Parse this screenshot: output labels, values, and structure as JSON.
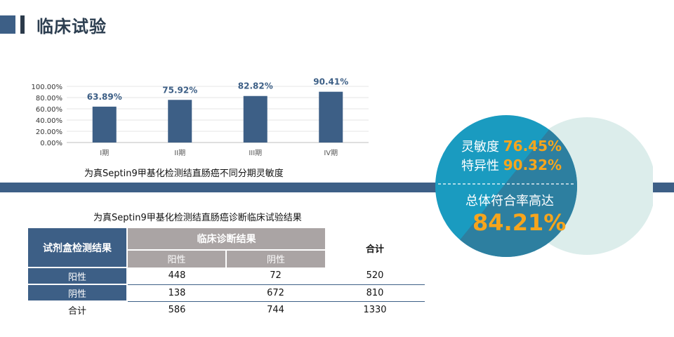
{
  "header": {
    "title": "临床试验"
  },
  "chart_data": {
    "type": "bar",
    "categories": [
      "I期",
      "II期",
      "III期",
      "IV期"
    ],
    "values": [
      63.89,
      75.92,
      82.82,
      90.41
    ],
    "data_labels": [
      "63.89%",
      "75.92%",
      "82.82%",
      "90.41%"
    ],
    "yticks": [
      "0.00%",
      "20.00%",
      "40.00%",
      "60.00%",
      "80.00%",
      "100.00%"
    ],
    "ylim": [
      0,
      100
    ],
    "grid": true,
    "title": "为真Septin9甲基化检测结直肠癌不同分期灵敏度",
    "colors": {
      "bar": "#3d5f86",
      "label": "#3d5f86"
    }
  },
  "table": {
    "caption": "为真Septin9甲基化检测结直肠癌诊断临床试验结果",
    "header_left": "试剂盒检测结果",
    "header_group": "临床诊断结果",
    "sub_headers": [
      "阳性",
      "阴性"
    ],
    "header_total": "合计",
    "rows": [
      {
        "label": "阳性",
        "values": [
          "448",
          "72",
          "520"
        ]
      },
      {
        "label": "阴性",
        "values": [
          "138",
          "672",
          "810"
        ]
      },
      {
        "label": "合计",
        "values": [
          "586",
          "744",
          "1330"
        ]
      }
    ]
  },
  "summary": {
    "sensitivity_label": "灵敏度",
    "sensitivity_value": "76.45%",
    "specificity_label": "特异性",
    "specificity_value": "90.32%",
    "agreement_label": "总体符合率高达",
    "agreement_value": "84.21%",
    "colors": {
      "circle": "#1a9bc0",
      "circle_dark": "#2d7fa0",
      "pale": "#dcedeb",
      "value": "#f7a51c"
    }
  }
}
